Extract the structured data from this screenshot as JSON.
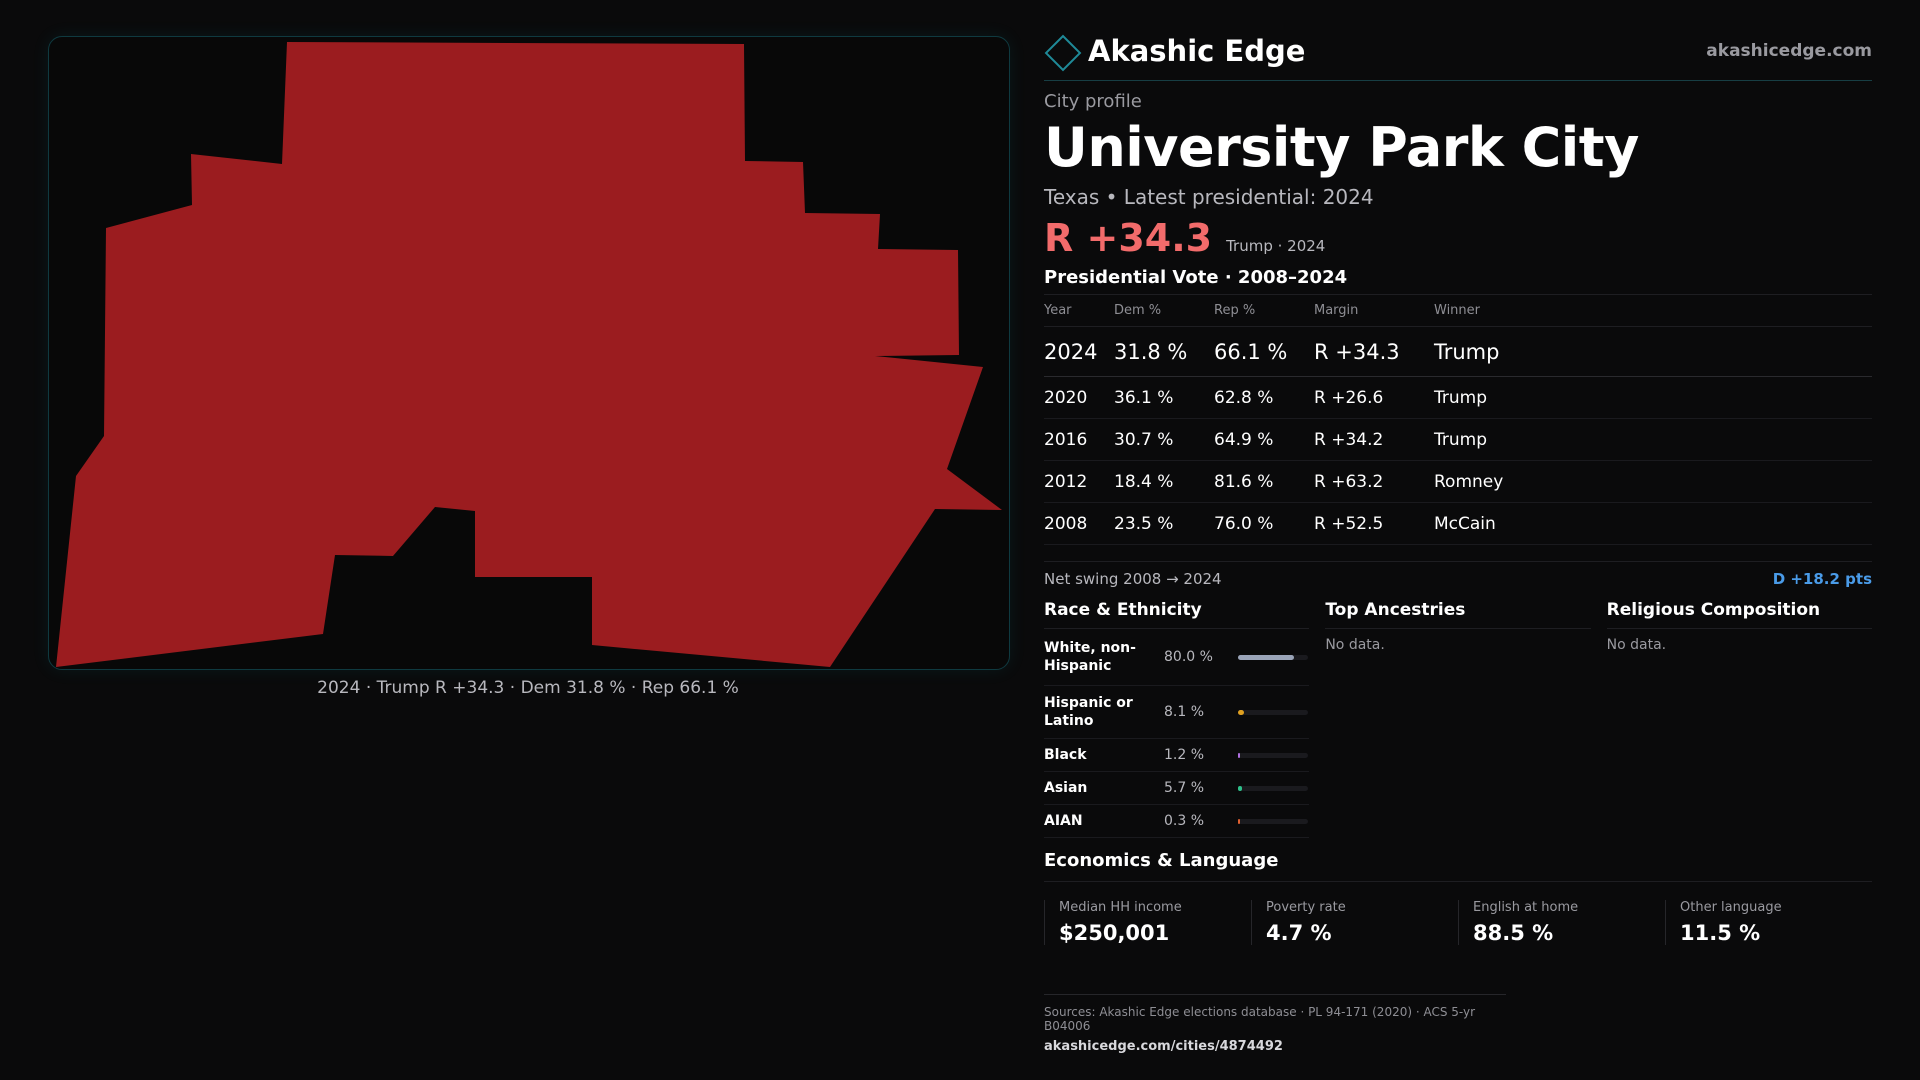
{
  "map": {
    "caption": "2024 · Trump R +34.3 · Dem 31.8 % · Rep 66.1 %",
    "fill_color": "#9b1c1f"
  },
  "brand": {
    "name": "Akashic Edge",
    "url": "akashicedge.com",
    "logo_icon": "diamond-outline-icon"
  },
  "profile": {
    "label": "City profile",
    "title": "University Park City",
    "subline": "Texas • Latest presidential: 2024",
    "margin": "R +34.3",
    "margin_note": "Trump · 2024"
  },
  "votes": {
    "title": "Presidential Vote · 2008–2024",
    "headers": {
      "year": "Year",
      "dem": "Dem %",
      "rep": "Rep %",
      "margin": "Margin",
      "winner": "Winner"
    },
    "rows": [
      {
        "year": "2024",
        "dem": "31.8 %",
        "rep": "66.1 %",
        "margin": "R +34.3",
        "winner": "Trump"
      },
      {
        "year": "2020",
        "dem": "36.1 %",
        "rep": "62.8 %",
        "margin": "R +26.6",
        "winner": "Trump"
      },
      {
        "year": "2016",
        "dem": "30.7 %",
        "rep": "64.9 %",
        "margin": "R +34.2",
        "winner": "Trump"
      },
      {
        "year": "2012",
        "dem": "18.4 %",
        "rep": "81.6 %",
        "margin": "R +63.2",
        "winner": "Romney"
      },
      {
        "year": "2008",
        "dem": "23.5 %",
        "rep": "76.0 %",
        "margin": "R +52.5",
        "winner": "McCain"
      }
    ],
    "swing_label": "Net swing 2008 → 2024",
    "swing_value": "D +18.2 pts"
  },
  "race": {
    "title": "Race & Ethnicity",
    "items": [
      {
        "label": "White, non-Hispanic",
        "value": "80.0 %",
        "pct": 80.0,
        "color": "#9aa4b8"
      },
      {
        "label": "Hispanic or Latino",
        "value": "8.1 %",
        "pct": 8.1,
        "color": "#e0a020"
      },
      {
        "label": "Black",
        "value": "1.2 %",
        "pct": 1.2,
        "color": "#b070e0"
      },
      {
        "label": "Asian",
        "value": "5.7 %",
        "pct": 5.7,
        "color": "#2ec08a"
      },
      {
        "label": "AIAN",
        "value": "0.3 %",
        "pct": 0.3,
        "color": "#e06030"
      }
    ]
  },
  "ancestries": {
    "title": "Top Ancestries",
    "empty": "No data."
  },
  "religion": {
    "title": "Religious Composition",
    "empty": "No data."
  },
  "economics": {
    "title": "Economics & Language",
    "cells": [
      {
        "label": "Median HH income",
        "value": "$250,001"
      },
      {
        "label": "Poverty rate",
        "value": "4.7 %"
      },
      {
        "label": "English at home",
        "value": "88.5 %"
      },
      {
        "label": "Other language",
        "value": "11.5 %"
      }
    ]
  },
  "sources": {
    "line": "Sources: Akashic Edge elections database · PL 94-171 (2020) · ACS 5-yr B04006",
    "url": "akashicedge.com/cities/4874492"
  }
}
